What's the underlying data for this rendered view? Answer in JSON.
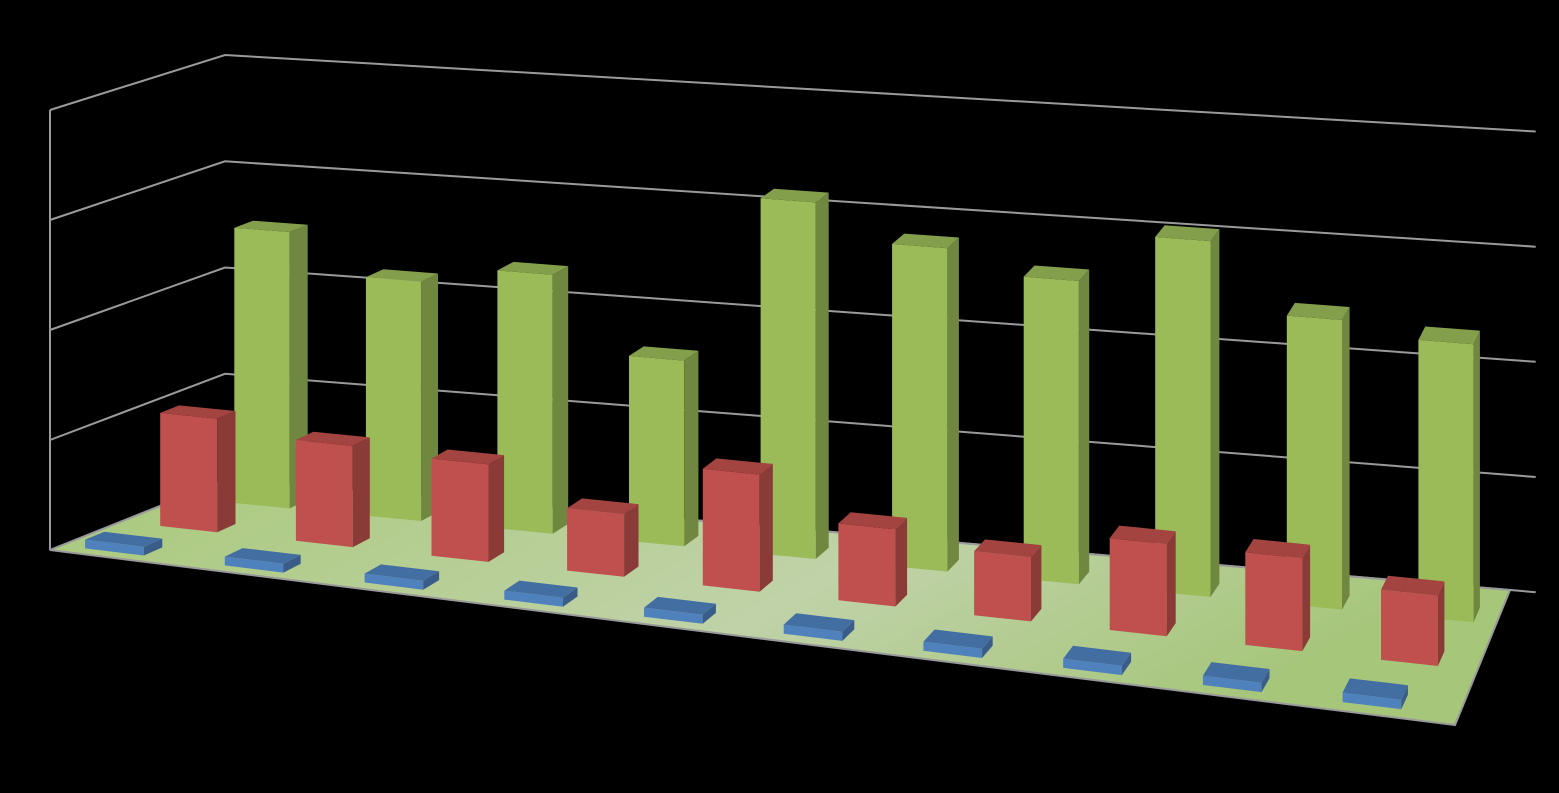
{
  "chart_data": {
    "type": "bar3d",
    "categories": [
      null,
      null,
      null,
      null,
      null,
      null,
      null,
      null,
      null,
      null
    ],
    "series": [
      {
        "color": "#4f81bd",
        "values": [
          2,
          2,
          2,
          2,
          2,
          2,
          2,
          2,
          2,
          2
        ]
      },
      {
        "color": "#c0504d",
        "values": [
          26,
          23,
          22,
          14,
          26,
          17,
          14,
          20,
          20,
          15
        ]
      },
      {
        "color": "#9bbb59",
        "values": [
          64,
          55,
          59,
          42,
          80,
          72,
          67,
          78,
          63,
          60
        ]
      }
    ],
    "ylim": [
      0,
      100
    ],
    "yticks": [
      0,
      25,
      50,
      75,
      100
    ],
    "grid": true
  }
}
